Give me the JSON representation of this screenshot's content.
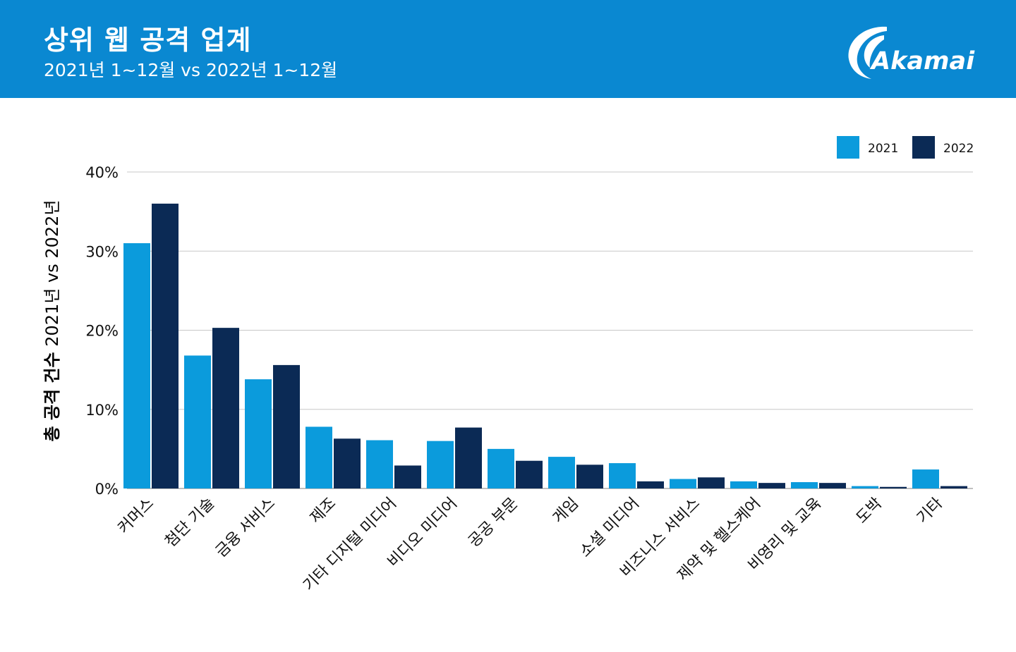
{
  "header": {
    "title": "상위 웹 공격 업계",
    "subtitle": "2021년 1~12월 vs 2022년 1~12월",
    "logo_text": "Akamai",
    "background": "#0a88d1"
  },
  "chart_data": {
    "type": "bar",
    "title": "상위 웹 공격 업계",
    "subtitle": "2021년 1~12월 vs 2022년 1~12월",
    "ylabel_bold": "총 공격 건수",
    "ylabel_rest": " 2021년 vs 2022년",
    "xlabel": "",
    "ylim": [
      0,
      40
    ],
    "yticks": [
      0,
      10,
      20,
      30,
      40
    ],
    "ytick_suffix": "%",
    "grid": true,
    "legend_position": "top-right",
    "categories": [
      "커머스",
      "첨단 기술",
      "금융 서비스",
      "제조",
      "기타 디지털 미디어",
      "비디오 미디어",
      "공공 부문",
      "게임",
      "소셜 미디어",
      "비즈니스 서비스",
      "제약 및 헬스케어",
      "비영리 및 교육",
      "도박",
      "기타"
    ],
    "series": [
      {
        "name": "2021",
        "color": "#0b9bdc",
        "values": [
          31.0,
          16.8,
          13.8,
          7.8,
          6.1,
          6.0,
          5.0,
          4.0,
          3.2,
          1.2,
          0.9,
          0.8,
          0.3,
          2.4
        ]
      },
      {
        "name": "2022",
        "color": "#0b2a55",
        "values": [
          36.0,
          20.3,
          15.6,
          6.3,
          2.9,
          7.7,
          3.5,
          3.0,
          0.9,
          1.4,
          0.7,
          0.7,
          0.2,
          0.3
        ]
      }
    ]
  }
}
